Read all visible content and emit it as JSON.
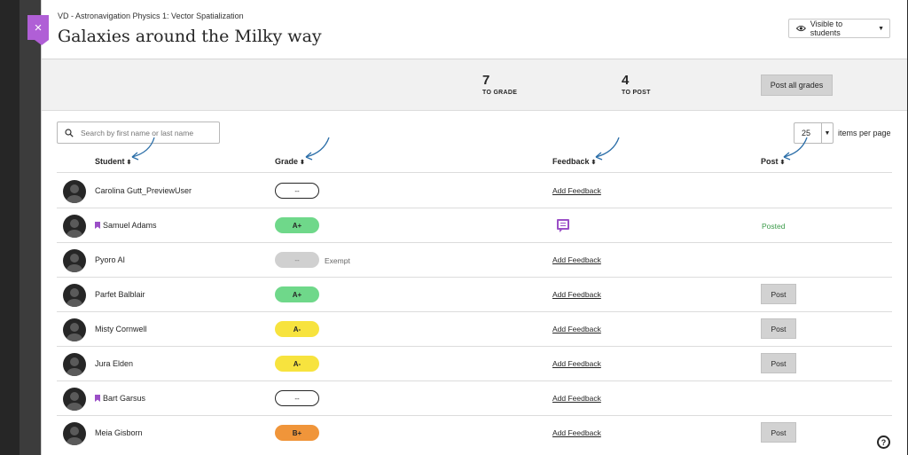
{
  "header": {
    "breadcrumb": "VD - Astronavigation Physics 1: Vector Spatialization",
    "title": "Galaxies around the Milky way",
    "visibility_label": "Visible to students",
    "close_label": "×"
  },
  "summary": {
    "to_grade_count": "7",
    "to_grade_label": "TO GRADE",
    "to_post_count": "4",
    "to_post_label": "TO POST",
    "post_all_label": "Post all grades"
  },
  "controls": {
    "search_placeholder": "Search by first name or last name",
    "per_page_value": "25",
    "per_page_label": "items per page"
  },
  "columns": {
    "student": "Student",
    "grade": "Grade",
    "feedback": "Feedback",
    "post": "Post"
  },
  "rows": [
    {
      "name": "Carolina Gutt_PreviewUser",
      "flag": false,
      "grade": "--",
      "grade_style": "empty",
      "exempt": "",
      "feedback": "Add Feedback",
      "feedback_icon": false,
      "post": "",
      "post_style": "none"
    },
    {
      "name": "Samuel Adams",
      "flag": true,
      "grade": "A+",
      "grade_style": "green",
      "exempt": "",
      "feedback": "",
      "feedback_icon": true,
      "post": "Posted",
      "post_style": "posted"
    },
    {
      "name": "Pyoro AI",
      "flag": false,
      "grade": "--",
      "grade_style": "gray",
      "exempt": "Exempt",
      "feedback": "Add Feedback",
      "feedback_icon": false,
      "post": "",
      "post_style": "none"
    },
    {
      "name": "Parfet Balblair",
      "flag": false,
      "grade": "A+",
      "grade_style": "green",
      "exempt": "",
      "feedback": "Add Feedback",
      "feedback_icon": false,
      "post": "Post",
      "post_style": "button"
    },
    {
      "name": "Misty Cornwell",
      "flag": false,
      "grade": "A-",
      "grade_style": "yellow",
      "exempt": "",
      "feedback": "Add Feedback",
      "feedback_icon": false,
      "post": "Post",
      "post_style": "button"
    },
    {
      "name": "Jura Elden",
      "flag": false,
      "grade": "A-",
      "grade_style": "yellow",
      "exempt": "",
      "feedback": "Add Feedback",
      "feedback_icon": false,
      "post": "Post",
      "post_style": "button"
    },
    {
      "name": "Bart Garsus",
      "flag": true,
      "grade": "--",
      "grade_style": "empty",
      "exempt": "",
      "feedback": "Add Feedback",
      "feedback_icon": false,
      "post": "",
      "post_style": "none"
    },
    {
      "name": "Meia Gisborn",
      "flag": false,
      "grade": "B+",
      "grade_style": "orange",
      "exempt": "",
      "feedback": "Add Feedback",
      "feedback_icon": false,
      "post": "Post",
      "post_style": "button"
    }
  ],
  "help_label": "?",
  "colors": {
    "accent": "#b05fd6",
    "posted": "#3c9b4a",
    "grade_green": "#6fd88a",
    "grade_yellow": "#f7e33e",
    "grade_orange": "#f0953a"
  }
}
